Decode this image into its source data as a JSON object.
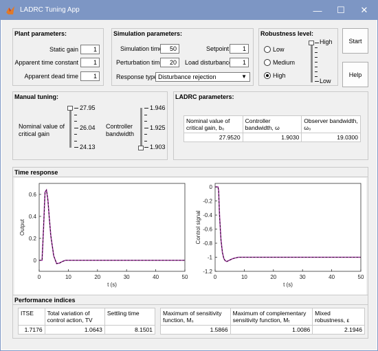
{
  "window": {
    "title": "LADRC Tuning App",
    "minimize": "—",
    "maximize": "☐",
    "close": "✕"
  },
  "plant": {
    "title": "Plant parameters:",
    "static_gain_label": "Static gain",
    "static_gain": "1",
    "time_constant_label": "Apparent time constant",
    "time_constant": "1",
    "dead_time_label": "Apparent dead time",
    "dead_time": "1"
  },
  "simulation": {
    "title": "Simulation parameters:",
    "sim_time_label": "Simulation time",
    "sim_time": "50",
    "setpoint_label": "Setpoint",
    "setpoint": "1",
    "perturbation_label": "Perturbation time",
    "perturbation": "20",
    "load_label": "Load disturbance",
    "load": "1",
    "response_label": "Response type",
    "response_value": "Disturbance rejection"
  },
  "robustness": {
    "title": "Robustness level:",
    "options": [
      "Low",
      "Medium",
      "High"
    ],
    "selected": "High",
    "slider_high": "High",
    "slider_low": "Low",
    "slider_level": 1.0
  },
  "buttons": {
    "start": "Start",
    "help": "Help"
  },
  "manual": {
    "title": "Manual tuning:",
    "gain_label_1": "Nominal value of",
    "gain_label_2": "critical gain",
    "gain_max": "27.95",
    "gain_mid": "26.04",
    "gain_min": "24.13",
    "bw_label_1": "Controller",
    "bw_label_2": "bandwidth",
    "bw_max": "1.946",
    "bw_mid": "1.925",
    "bw_min": "1.903"
  },
  "ladrc": {
    "title": "LADRC parameters:",
    "headers": [
      "Nominal value of critical gain, b₀",
      "Controller bandwidth, ω",
      "Observer bandwidth, ω₀"
    ],
    "values": [
      "27.9520",
      "1.9030",
      "19.0300"
    ]
  },
  "time_response": {
    "title": "Time response",
    "left_ylabel": "Output",
    "left_xlabel": "t (s)",
    "right_ylabel": "Control signal",
    "right_xlabel": "t (s)",
    "left_yticks": [
      "0.6",
      "0.4",
      "0.2",
      "0"
    ],
    "right_yticks": [
      "0",
      "-0.2",
      "-0.4",
      "-0.6",
      "-0.8",
      "-1",
      "-1.2"
    ],
    "xticks": [
      "0",
      "10",
      "20",
      "30",
      "40",
      "50"
    ]
  },
  "chart_data": [
    {
      "type": "line",
      "xlabel": "t (s)",
      "ylabel": "Output",
      "xlim": [
        0,
        50
      ],
      "ylim": [
        -0.1,
        0.7
      ],
      "x": [
        0,
        1,
        1.5,
        2,
        2.5,
        3,
        3.5,
        4,
        5,
        6,
        7,
        8,
        9,
        10,
        12,
        50
      ],
      "y": [
        0,
        0,
        0.3,
        0.62,
        0.64,
        0.55,
        0.38,
        0.22,
        0.04,
        -0.03,
        -0.025,
        -0.01,
        0,
        0,
        0,
        0
      ],
      "colors": [
        "#000000",
        "#b040b0"
      ]
    },
    {
      "type": "line",
      "xlabel": "t (s)",
      "ylabel": "Control signal",
      "xlim": [
        0,
        50
      ],
      "ylim": [
        -1.2,
        0.05
      ],
      "x": [
        0,
        1,
        1.2,
        1.5,
        2,
        2.5,
        3,
        3.5,
        4,
        5,
        6,
        7,
        8,
        10,
        50
      ],
      "y": [
        0,
        0,
        -0.05,
        -0.4,
        -0.75,
        -0.93,
        -1.02,
        -1.05,
        -1.06,
        -1.04,
        -1.02,
        -1.01,
        -1.0,
        -1.0,
        -1.0
      ],
      "colors": [
        "#000000",
        "#b040b0"
      ]
    }
  ],
  "performance": {
    "title": "Performance indices",
    "left_headers": [
      "ITSE",
      "Total variation of control action, TV",
      "Settling time"
    ],
    "left_values": [
      "1.7176",
      "1.0643",
      "8.1501"
    ],
    "right_headers": [
      "Maximum of sensitivity function, Mₛ",
      "Maximum of complementary sensitivity function, Mₜ",
      "Mixed robustness, ε"
    ],
    "right_values": [
      "1.5866",
      "1.0086",
      "2.1946"
    ]
  }
}
